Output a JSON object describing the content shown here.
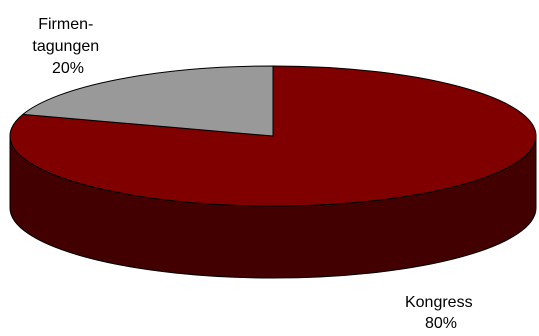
{
  "chart_data": {
    "type": "pie",
    "style": "3d",
    "slices": [
      {
        "label_lines": [
          "Kongress"
        ],
        "value": 80,
        "value_label": "80%",
        "color": "#800000",
        "side_color": "#430000"
      },
      {
        "label_lines": [
          "Firmen-",
          "tagungen"
        ],
        "value": 20,
        "value_label": "20%",
        "color": "#999999",
        "side_color": "#555555"
      }
    ],
    "legend": "none",
    "grid": false
  }
}
